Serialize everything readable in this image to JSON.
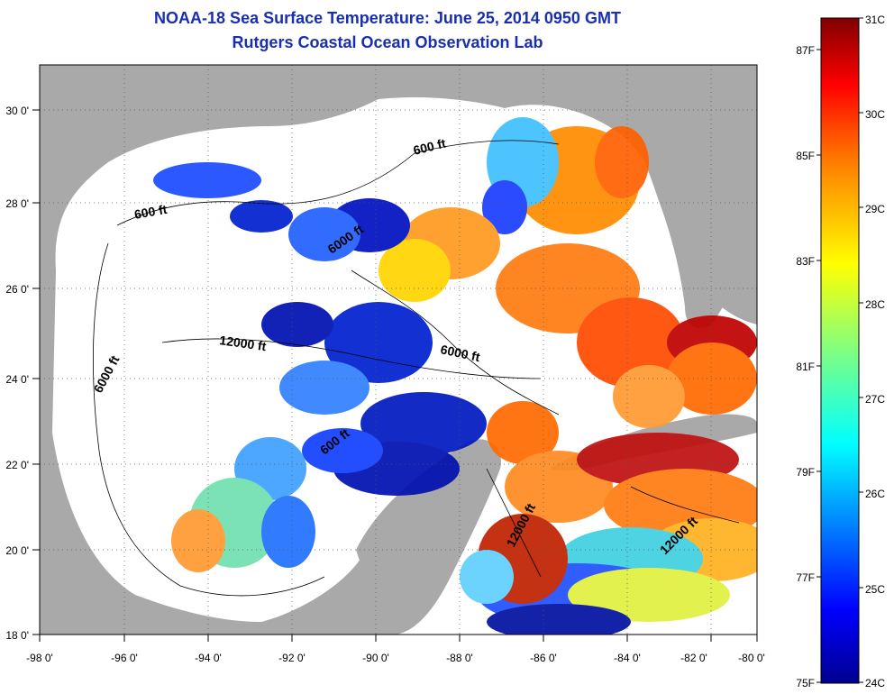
{
  "title": "NOAA-18 Sea Surface Temperature:  June 25, 2014 0950 GMT",
  "subtitle": "Rutgers Coastal Ocean Observation Lab",
  "map": {
    "lon_ticks": [
      "-98 0'",
      "-96 0'",
      "-94 0'",
      "-92 0'",
      "-90 0'",
      "-88 0'",
      "-86 0'",
      "-84 0'",
      "-82 0'",
      "-80 0'"
    ],
    "lat_ticks": [
      "30 0'",
      "28 0'",
      "26 0'",
      "24 0'",
      "22 0'",
      "20 0'",
      "18 0'"
    ],
    "contour_labels": [
      "600 ft",
      "600 ft",
      "6000 ft",
      "12000 ft",
      "6000 ft",
      "6000 ft",
      "600 ft",
      "12000 ft",
      "12000 ft"
    ],
    "colors": {
      "land": "#a9a9a9",
      "nodata_water": "#ffffff",
      "grid": "#555555"
    }
  },
  "colorbar": {
    "celsius_labels": [
      "31C",
      "30C",
      "29C",
      "28C",
      "27C",
      "26C",
      "25C",
      "24C"
    ],
    "fahrenheit_labels": [
      "87F",
      "85F",
      "83F",
      "81F",
      "79F",
      "77F",
      "75F"
    ],
    "range_c": [
      24,
      31
    ],
    "colors": [
      "#00008f",
      "#0000ff",
      "#0080ff",
      "#00ffff",
      "#80ff80",
      "#ffff00",
      "#ff8000",
      "#ff0000",
      "#800000"
    ]
  }
}
